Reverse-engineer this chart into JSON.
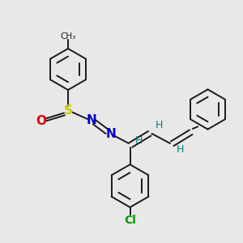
{
  "bg_color": "#e8e8e8",
  "atom_colors": {
    "C": "#1a1a1a",
    "H": "#008080",
    "N": "#0000cc",
    "S": "#cccc00",
    "O": "#dd0000",
    "Cl": "#009900"
  },
  "bond_color": "#1a1a1a",
  "figsize": [
    3.0,
    3.0
  ],
  "dpi": 100,
  "lw": 1.4
}
